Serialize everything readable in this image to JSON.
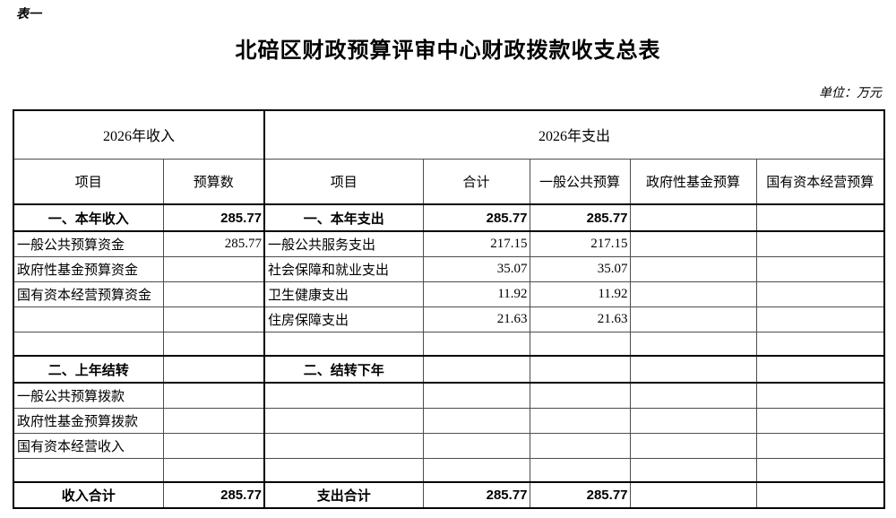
{
  "page": {
    "corner_label": "表一",
    "title": "北碚区财政预算评审中心财政拨款收支总表",
    "unit_note": "单位：万元"
  },
  "table": {
    "group_headers": {
      "income": "2026年收入",
      "expense": "2026年支出"
    },
    "column_headers": [
      "项目",
      "预算数",
      "项目",
      "合计",
      "一般公共预算",
      "政府性基金预算",
      "国有资本经营预算"
    ],
    "rows": [
      {
        "kind": "section",
        "cells": [
          "一、本年收入",
          "285.77",
          "一、本年支出",
          "285.77",
          "285.77",
          "",
          ""
        ]
      },
      {
        "kind": "item",
        "cells": [
          "一般公共预算资金",
          "285.77",
          "一般公共服务支出",
          "217.15",
          "217.15",
          "",
          ""
        ]
      },
      {
        "kind": "item",
        "cells": [
          "政府性基金预算资金",
          "",
          "社会保障和就业支出",
          "35.07",
          "35.07",
          "",
          ""
        ]
      },
      {
        "kind": "item",
        "cells": [
          "国有资本经营预算资金",
          "",
          "卫生健康支出",
          "11.92",
          "11.92",
          "",
          ""
        ]
      },
      {
        "kind": "item",
        "cells": [
          "",
          "",
          "住房保障支出",
          "21.63",
          "21.63",
          "",
          ""
        ]
      },
      {
        "kind": "spacer",
        "cells": [
          "",
          "",
          "",
          "",
          "",
          "",
          ""
        ]
      },
      {
        "kind": "section",
        "cells": [
          "二、上年结转",
          "",
          "二、结转下年",
          "",
          "",
          "",
          ""
        ]
      },
      {
        "kind": "item",
        "cells": [
          "一般公共预算拨款",
          "",
          "",
          "",
          "",
          "",
          ""
        ]
      },
      {
        "kind": "item",
        "cells": [
          "政府性基金预算拨款",
          "",
          "",
          "",
          "",
          "",
          ""
        ]
      },
      {
        "kind": "item",
        "cells": [
          "国有资本经营收入",
          "",
          "",
          "",
          "",
          "",
          ""
        ]
      },
      {
        "kind": "spacer",
        "cells": [
          "",
          "",
          "",
          "",
          "",
          "",
          ""
        ]
      },
      {
        "kind": "total",
        "cells": [
          "收入合计",
          "285.77",
          "支出合计",
          "285.77",
          "285.77",
          "",
          ""
        ]
      }
    ]
  }
}
